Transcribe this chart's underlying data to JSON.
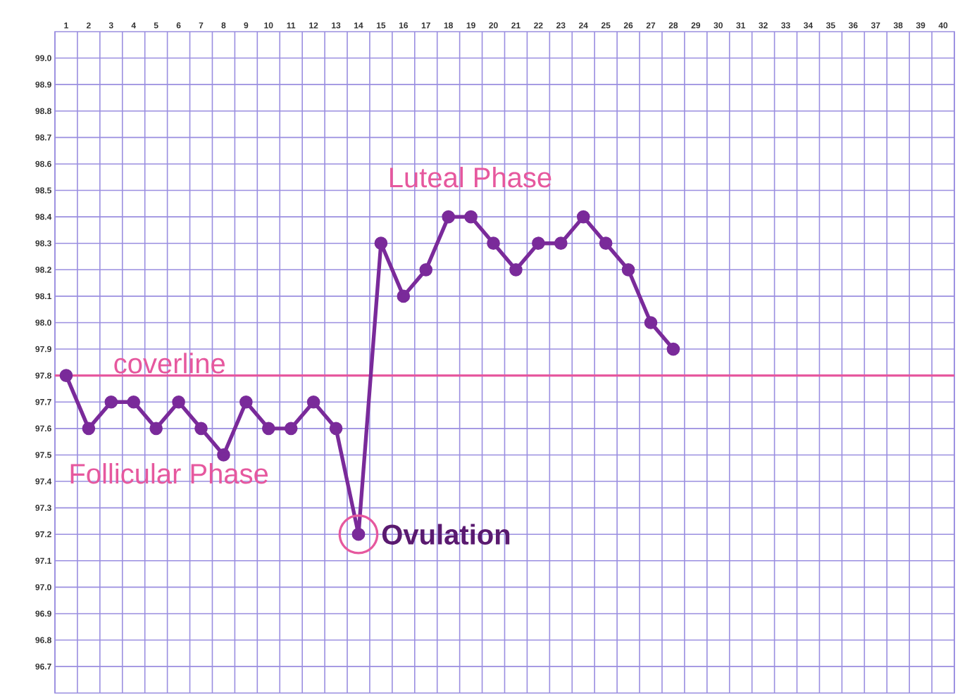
{
  "chart_data": {
    "type": "line",
    "categories": [
      "1",
      "2",
      "3",
      "4",
      "5",
      "6",
      "7",
      "8",
      "9",
      "10",
      "11",
      "12",
      "13",
      "14",
      "15",
      "16",
      "17",
      "18",
      "19",
      "20",
      "21",
      "22",
      "23",
      "24",
      "25",
      "26",
      "27",
      "28",
      "29",
      "30",
      "31",
      "32",
      "33",
      "34",
      "35",
      "36",
      "37",
      "38",
      "39",
      "40"
    ],
    "values": [
      97.8,
      97.6,
      97.7,
      97.7,
      97.6,
      97.7,
      97.6,
      97.5,
      97.7,
      97.6,
      97.6,
      97.7,
      97.6,
      97.2,
      98.3,
      98.1,
      98.2,
      98.4,
      98.4,
      98.3,
      98.2,
      98.3,
      98.3,
      98.4,
      98.3,
      98.2,
      98.0,
      97.9,
      null,
      null,
      null,
      null,
      null,
      null,
      null,
      null,
      null,
      null,
      null,
      null
    ],
    "color": "#7a2a9a",
    "marker": "circle",
    "ylim": [
      96.6,
      99.1
    ],
    "yticks": [
      {
        "value": 99,
        "label": "99.0"
      },
      98.9,
      98.8,
      98.7,
      98.6,
      98.5,
      98.4,
      98.3,
      98.2,
      98.1,
      {
        "value": 98,
        "label": "98.0"
      },
      97.9,
      97.8,
      97.7,
      97.6,
      97.5,
      97.4,
      97.3,
      97.2,
      97.1,
      {
        "value": 97,
        "label": "97.0"
      },
      96.9,
      96.8,
      96.7
    ],
    "grid": true,
    "ref_lines": [
      {
        "axis": "y",
        "value": 97.8,
        "label": "coverline",
        "color": "#e6589e"
      }
    ],
    "annotations": [
      "Follicular Phase",
      "Luteal Phase",
      {
        "text": "Ovulation",
        "x": "14",
        "y": 97.2
      }
    ]
  }
}
